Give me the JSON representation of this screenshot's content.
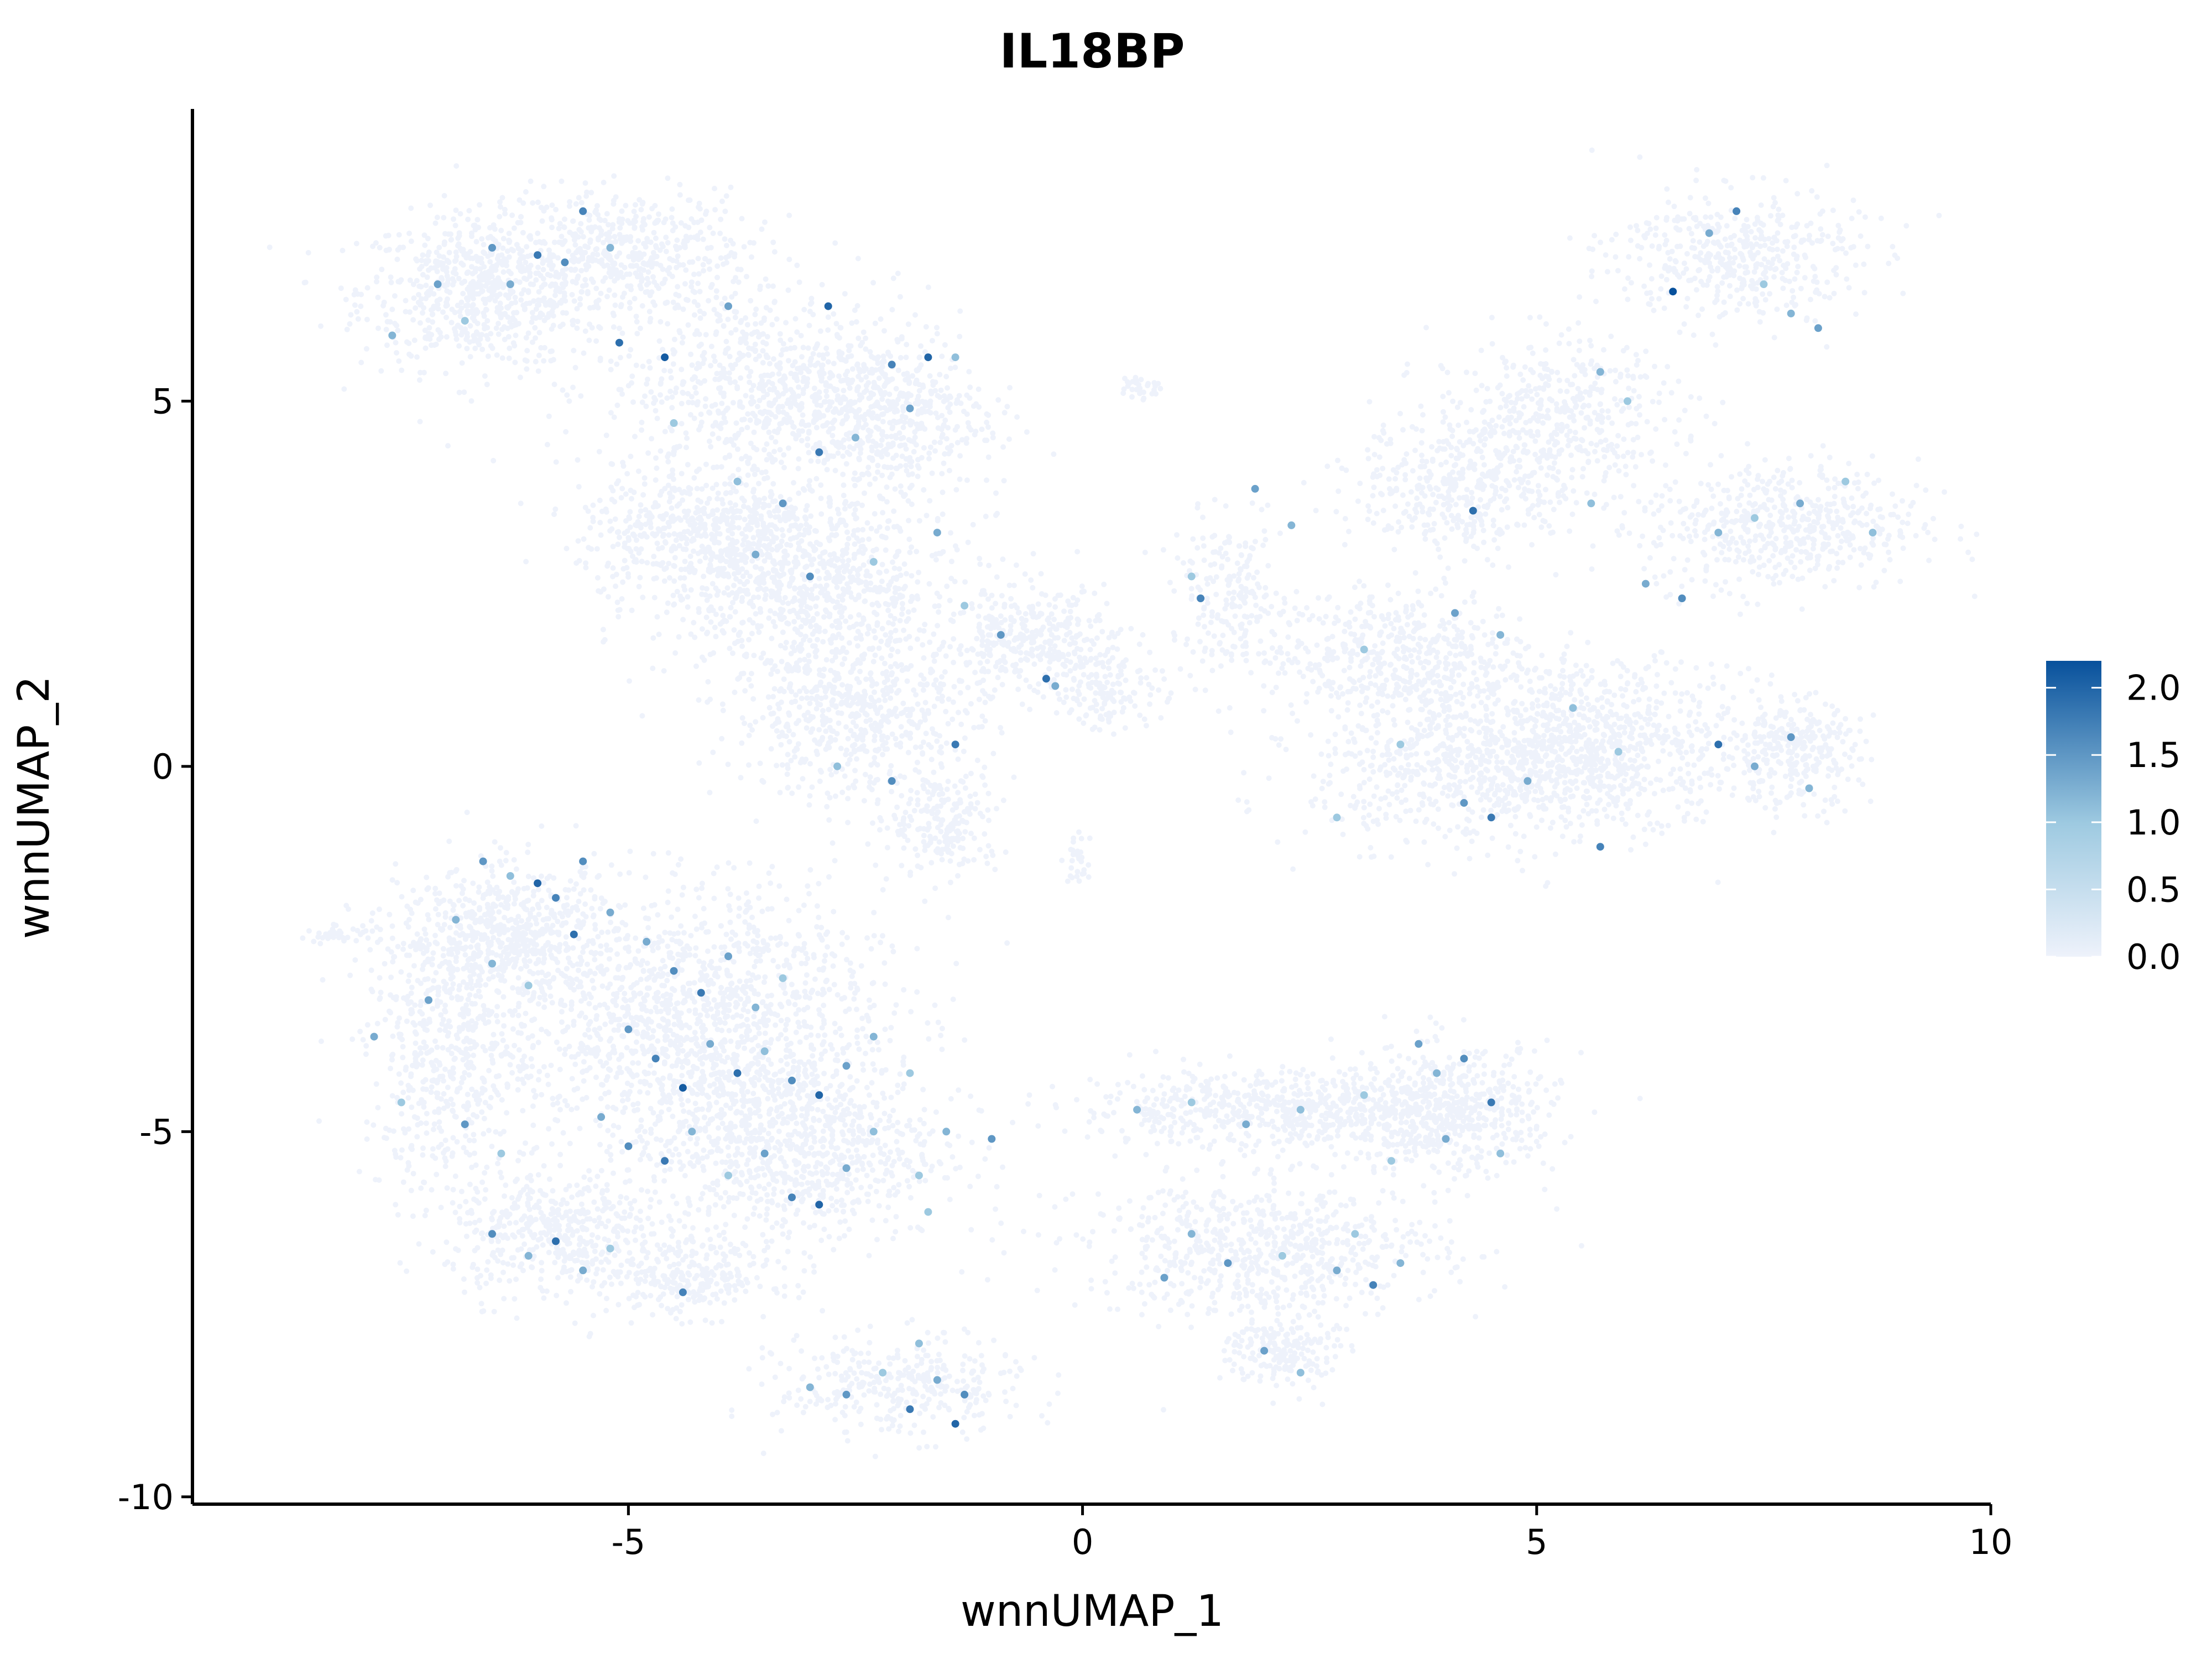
{
  "chart_data": {
    "type": "scatter",
    "title": "IL18BP",
    "xlabel": "wnnUMAP_1",
    "ylabel": "wnnUMAP_2",
    "xlim": [
      -9.8,
      10.0
    ],
    "ylim": [
      -10.1,
      9.0
    ],
    "xticks": [
      -5,
      0,
      5,
      10
    ],
    "xtick_labels": [
      "-5",
      "0",
      "5",
      "10"
    ],
    "yticks": [
      5,
      0,
      -5,
      -10
    ],
    "ytick_labels": [
      "5",
      "0",
      "-5",
      "-10"
    ],
    "grid": false,
    "color_scale": {
      "min": 0.0,
      "max": 2.2,
      "low_color": "#eef2fb",
      "mid_color": "#9ecae1",
      "high_color": "#08519c",
      "ticks": [
        2.0,
        1.5,
        1.0,
        0.5,
        0.0
      ],
      "tick_labels": [
        "2.0",
        "1.5",
        "1.0",
        "0.5",
        "0.0"
      ],
      "position": "right"
    },
    "background_cell_color": "#eef2fb",
    "clusters": [
      {
        "cx": -6.6,
        "cy": 6.5,
        "sx": 0.9,
        "sy": 0.7,
        "n": 700
      },
      {
        "cx": -5.0,
        "cy": 7.0,
        "sx": 0.9,
        "sy": 0.6,
        "n": 500
      },
      {
        "cx": -3.5,
        "cy": 5.2,
        "sx": 1.2,
        "sy": 0.9,
        "n": 700
      },
      {
        "cx": -2.3,
        "cy": 4.8,
        "sx": 0.8,
        "sy": 0.7,
        "n": 500
      },
      {
        "cx": -4.2,
        "cy": 3.2,
        "sx": 0.9,
        "sy": 0.6,
        "n": 500
      },
      {
        "cx": -3.0,
        "cy": 2.5,
        "sx": 1.1,
        "sy": 0.9,
        "n": 900
      },
      {
        "cx": -2.5,
        "cy": 0.7,
        "sx": 0.9,
        "sy": 0.8,
        "n": 600
      },
      {
        "cx": -1.5,
        "cy": -0.8,
        "sx": 0.4,
        "sy": 0.5,
        "n": 200
      },
      {
        "cx": -0.6,
        "cy": 1.7,
        "sx": 0.6,
        "sy": 0.5,
        "n": 350
      },
      {
        "cx": 0.3,
        "cy": 1.1,
        "sx": 0.4,
        "sy": 0.4,
        "n": 150
      },
      {
        "cx": 0.65,
        "cy": 5.2,
        "sx": 0.15,
        "sy": 0.12,
        "n": 30
      },
      {
        "cx": -0.05,
        "cy": -1.3,
        "sx": 0.12,
        "sy": 0.25,
        "n": 30
      },
      {
        "cx": 1.6,
        "cy": 2.3,
        "sx": 0.4,
        "sy": 0.7,
        "n": 200
      },
      {
        "cx": 7.2,
        "cy": 7.0,
        "sx": 0.9,
        "sy": 0.6,
        "n": 450
      },
      {
        "cx": 5.2,
        "cy": 4.8,
        "sx": 0.9,
        "sy": 0.7,
        "n": 450
      },
      {
        "cx": 4.2,
        "cy": 3.8,
        "sx": 0.8,
        "sy": 0.6,
        "n": 400
      },
      {
        "cx": 7.7,
        "cy": 3.3,
        "sx": 1.0,
        "sy": 0.6,
        "n": 550
      },
      {
        "cx": 3.5,
        "cy": 1.5,
        "sx": 1.0,
        "sy": 0.6,
        "n": 550
      },
      {
        "cx": 4.5,
        "cy": 0.0,
        "sx": 1.3,
        "sy": 0.7,
        "n": 900
      },
      {
        "cx": 5.9,
        "cy": 0.4,
        "sx": 0.9,
        "sy": 0.7,
        "n": 500
      },
      {
        "cx": 7.8,
        "cy": 0.2,
        "sx": 0.5,
        "sy": 0.5,
        "n": 300
      },
      {
        "cx": -6.3,
        "cy": -2.3,
        "sx": 0.8,
        "sy": 0.6,
        "n": 600
      },
      {
        "cx": -7.0,
        "cy": -4.0,
        "sx": 0.6,
        "sy": 1.2,
        "n": 500
      },
      {
        "cx": -4.3,
        "cy": -3.5,
        "sx": 1.4,
        "sy": 1.2,
        "n": 1500
      },
      {
        "cx": -3.2,
        "cy": -5.2,
        "sx": 1.1,
        "sy": 0.9,
        "n": 900
      },
      {
        "cx": -5.8,
        "cy": -6.4,
        "sx": 0.8,
        "sy": 0.6,
        "n": 500
      },
      {
        "cx": -4.3,
        "cy": -7.0,
        "sx": 0.6,
        "sy": 0.35,
        "n": 250
      },
      {
        "cx": -2.0,
        "cy": -8.5,
        "sx": 0.9,
        "sy": 0.45,
        "n": 350
      },
      {
        "cx": 2.3,
        "cy": -4.7,
        "sx": 1.6,
        "sy": 0.35,
        "n": 700
      },
      {
        "cx": 4.0,
        "cy": -4.7,
        "sx": 0.8,
        "sy": 0.6,
        "n": 500
      },
      {
        "cx": 2.0,
        "cy": -6.6,
        "sx": 1.3,
        "sy": 0.6,
        "n": 700
      },
      {
        "cx": 2.2,
        "cy": -8.0,
        "sx": 0.4,
        "sy": 0.35,
        "n": 200
      },
      {
        "cx": -8.2,
        "cy": -2.3,
        "sx": 0.3,
        "sy": 0.08,
        "n": 40
      }
    ],
    "expressing_cells": [
      {
        "x": -7.6,
        "y": 5.9,
        "v": 1.2
      },
      {
        "x": -7.1,
        "y": 6.6,
        "v": 1.4
      },
      {
        "x": -6.8,
        "y": 6.1,
        "v": 1.0
      },
      {
        "x": -6.5,
        "y": 7.1,
        "v": 1.5
      },
      {
        "x": -6.3,
        "y": 6.6,
        "v": 1.3
      },
      {
        "x": -6.0,
        "y": 7.0,
        "v": 1.8
      },
      {
        "x": -5.7,
        "y": 6.9,
        "v": 1.6
      },
      {
        "x": -5.5,
        "y": 7.6,
        "v": 1.7
      },
      {
        "x": -5.2,
        "y": 7.1,
        "v": 1.2
      },
      {
        "x": -5.1,
        "y": 5.8,
        "v": 1.9
      },
      {
        "x": -4.6,
        "y": 5.6,
        "v": 2.1
      },
      {
        "x": -4.5,
        "y": 4.7,
        "v": 1.0
      },
      {
        "x": -3.9,
        "y": 6.3,
        "v": 1.4
      },
      {
        "x": -3.8,
        "y": 3.9,
        "v": 1.1
      },
      {
        "x": -3.6,
        "y": 2.9,
        "v": 1.3
      },
      {
        "x": -3.3,
        "y": 3.6,
        "v": 1.5
      },
      {
        "x": -3.0,
        "y": 2.6,
        "v": 1.6
      },
      {
        "x": -2.9,
        "y": 4.3,
        "v": 1.8
      },
      {
        "x": -2.8,
        "y": 6.3,
        "v": 2.0
      },
      {
        "x": -2.5,
        "y": 4.5,
        "v": 1.2
      },
      {
        "x": -2.3,
        "y": 2.8,
        "v": 1.0
      },
      {
        "x": -2.1,
        "y": 5.5,
        "v": 1.7
      },
      {
        "x": -1.9,
        "y": 4.9,
        "v": 1.4
      },
      {
        "x": -1.7,
        "y": 5.6,
        "v": 2.0
      },
      {
        "x": -1.6,
        "y": 3.2,
        "v": 1.3
      },
      {
        "x": -1.4,
        "y": 5.6,
        "v": 1.1
      },
      {
        "x": -1.3,
        "y": 2.2,
        "v": 1.0
      },
      {
        "x": -2.1,
        "y": -0.2,
        "v": 1.6
      },
      {
        "x": -1.4,
        "y": 0.3,
        "v": 1.8
      },
      {
        "x": -0.9,
        "y": 1.8,
        "v": 1.5
      },
      {
        "x": -0.4,
        "y": 1.2,
        "v": 1.9
      },
      {
        "x": -0.3,
        "y": 1.1,
        "v": 1.3
      },
      {
        "x": -2.7,
        "y": 0.0,
        "v": 1.1
      },
      {
        "x": 1.3,
        "y": 2.3,
        "v": 1.7
      },
      {
        "x": 1.9,
        "y": 3.8,
        "v": 1.4
      },
      {
        "x": 1.2,
        "y": 2.6,
        "v": 1.0
      },
      {
        "x": 2.3,
        "y": 3.3,
        "v": 1.2
      },
      {
        "x": 3.1,
        "y": 1.6,
        "v": 1.0
      },
      {
        "x": 2.8,
        "y": -0.7,
        "v": 1.0
      },
      {
        "x": 6.5,
        "y": 6.5,
        "v": 2.2
      },
      {
        "x": 6.9,
        "y": 7.3,
        "v": 1.3
      },
      {
        "x": 7.2,
        "y": 7.6,
        "v": 1.7
      },
      {
        "x": 7.5,
        "y": 6.6,
        "v": 1.0
      },
      {
        "x": 7.8,
        "y": 6.2,
        "v": 1.2
      },
      {
        "x": 8.1,
        "y": 6.0,
        "v": 1.4
      },
      {
        "x": 5.7,
        "y": 5.4,
        "v": 1.2
      },
      {
        "x": 6.0,
        "y": 5.0,
        "v": 1.0
      },
      {
        "x": 4.3,
        "y": 3.5,
        "v": 1.9
      },
      {
        "x": 5.6,
        "y": 3.6,
        "v": 1.1
      },
      {
        "x": 6.2,
        "y": 2.5,
        "v": 1.3
      },
      {
        "x": 6.6,
        "y": 2.3,
        "v": 1.6
      },
      {
        "x": 7.0,
        "y": 3.2,
        "v": 1.2
      },
      {
        "x": 7.4,
        "y": 3.4,
        "v": 1.0
      },
      {
        "x": 7.9,
        "y": 3.6,
        "v": 1.3
      },
      {
        "x": 8.4,
        "y": 3.9,
        "v": 1.0
      },
      {
        "x": 8.7,
        "y": 3.2,
        "v": 1.1
      },
      {
        "x": 4.1,
        "y": 2.1,
        "v": 1.4
      },
      {
        "x": 4.6,
        "y": 1.8,
        "v": 1.2
      },
      {
        "x": 3.5,
        "y": 0.3,
        "v": 1.0
      },
      {
        "x": 4.2,
        "y": -0.5,
        "v": 1.5
      },
      {
        "x": 4.5,
        "y": -0.7,
        "v": 1.8
      },
      {
        "x": 4.9,
        "y": -0.2,
        "v": 1.3
      },
      {
        "x": 5.4,
        "y": 0.8,
        "v": 1.1
      },
      {
        "x": 5.7,
        "y": -1.1,
        "v": 1.7
      },
      {
        "x": 5.9,
        "y": 0.2,
        "v": 1.0
      },
      {
        "x": 7.0,
        "y": 0.3,
        "v": 1.9
      },
      {
        "x": 7.4,
        "y": 0.0,
        "v": 1.3
      },
      {
        "x": 7.8,
        "y": 0.4,
        "v": 1.5
      },
      {
        "x": 8.0,
        "y": -0.3,
        "v": 1.2
      },
      {
        "x": -7.8,
        "y": -3.7,
        "v": 1.3
      },
      {
        "x": -7.5,
        "y": -4.6,
        "v": 1.0
      },
      {
        "x": -7.2,
        "y": -3.2,
        "v": 1.4
      },
      {
        "x": -6.9,
        "y": -2.1,
        "v": 1.2
      },
      {
        "x": -6.6,
        "y": -1.3,
        "v": 1.5
      },
      {
        "x": -6.3,
        "y": -1.5,
        "v": 1.1
      },
      {
        "x": -6.0,
        "y": -1.6,
        "v": 2.0
      },
      {
        "x": -5.8,
        "y": -1.8,
        "v": 1.7
      },
      {
        "x": -5.5,
        "y": -1.3,
        "v": 1.6
      },
      {
        "x": -5.6,
        "y": -2.3,
        "v": 1.9
      },
      {
        "x": -5.2,
        "y": -2.0,
        "v": 1.3
      },
      {
        "x": -6.5,
        "y": -2.7,
        "v": 1.2
      },
      {
        "x": -6.1,
        "y": -3.0,
        "v": 1.0
      },
      {
        "x": -4.8,
        "y": -2.4,
        "v": 1.3
      },
      {
        "x": -4.5,
        "y": -2.8,
        "v": 1.6
      },
      {
        "x": -4.2,
        "y": -3.1,
        "v": 1.8
      },
      {
        "x": -3.9,
        "y": -2.6,
        "v": 1.4
      },
      {
        "x": -3.6,
        "y": -3.3,
        "v": 1.2
      },
      {
        "x": -3.3,
        "y": -2.9,
        "v": 1.0
      },
      {
        "x": -5.0,
        "y": -3.6,
        "v": 1.5
      },
      {
        "x": -4.7,
        "y": -4.0,
        "v": 1.7
      },
      {
        "x": -4.4,
        "y": -4.4,
        "v": 2.1
      },
      {
        "x": -4.1,
        "y": -3.8,
        "v": 1.3
      },
      {
        "x": -3.8,
        "y": -4.2,
        "v": 1.9
      },
      {
        "x": -3.5,
        "y": -3.9,
        "v": 1.1
      },
      {
        "x": -3.2,
        "y": -4.3,
        "v": 1.6
      },
      {
        "x": -2.9,
        "y": -4.5,
        "v": 2.0
      },
      {
        "x": -2.6,
        "y": -4.1,
        "v": 1.4
      },
      {
        "x": -2.3,
        "y": -3.7,
        "v": 1.2
      },
      {
        "x": -1.9,
        "y": -4.2,
        "v": 1.0
      },
      {
        "x": -5.3,
        "y": -4.8,
        "v": 1.3
      },
      {
        "x": -5.0,
        "y": -5.2,
        "v": 1.6
      },
      {
        "x": -4.6,
        "y": -5.4,
        "v": 1.8
      },
      {
        "x": -4.3,
        "y": -5.0,
        "v": 1.2
      },
      {
        "x": -3.9,
        "y": -5.6,
        "v": 1.0
      },
      {
        "x": -3.5,
        "y": -5.3,
        "v": 1.4
      },
      {
        "x": -3.2,
        "y": -5.9,
        "v": 1.7
      },
      {
        "x": -2.9,
        "y": -6.0,
        "v": 2.0
      },
      {
        "x": -2.6,
        "y": -5.5,
        "v": 1.3
      },
      {
        "x": -2.3,
        "y": -5.0,
        "v": 1.1
      },
      {
        "x": -1.8,
        "y": -5.6,
        "v": 1.0
      },
      {
        "x": -1.5,
        "y": -5.0,
        "v": 1.2
      },
      {
        "x": -6.8,
        "y": -4.9,
        "v": 1.5
      },
      {
        "x": -6.4,
        "y": -5.3,
        "v": 1.0
      },
      {
        "x": -6.5,
        "y": -6.4,
        "v": 1.6
      },
      {
        "x": -6.1,
        "y": -6.7,
        "v": 1.2
      },
      {
        "x": -5.8,
        "y": -6.5,
        "v": 1.9
      },
      {
        "x": -5.5,
        "y": -6.9,
        "v": 1.3
      },
      {
        "x": -5.2,
        "y": -6.6,
        "v": 1.0
      },
      {
        "x": -4.4,
        "y": -7.2,
        "v": 1.7
      },
      {
        "x": -3.0,
        "y": -8.5,
        "v": 1.2
      },
      {
        "x": -2.6,
        "y": -8.6,
        "v": 1.5
      },
      {
        "x": -2.2,
        "y": -8.3,
        "v": 1.0
      },
      {
        "x": -1.9,
        "y": -8.8,
        "v": 1.8
      },
      {
        "x": -1.6,
        "y": -8.4,
        "v": 1.3
      },
      {
        "x": -1.4,
        "y": -9.0,
        "v": 2.0
      },
      {
        "x": -1.3,
        "y": -8.6,
        "v": 1.6
      },
      {
        "x": -1.8,
        "y": -7.9,
        "v": 1.1
      },
      {
        "x": 0.6,
        "y": -4.7,
        "v": 1.2
      },
      {
        "x": 1.2,
        "y": -4.6,
        "v": 1.0
      },
      {
        "x": 1.8,
        "y": -4.9,
        "v": 1.3
      },
      {
        "x": 2.4,
        "y": -4.7,
        "v": 1.1
      },
      {
        "x": 3.1,
        "y": -4.5,
        "v": 1.0
      },
      {
        "x": 3.7,
        "y": -3.8,
        "v": 1.4
      },
      {
        "x": 3.9,
        "y": -4.2,
        "v": 1.2
      },
      {
        "x": 4.2,
        "y": -4.0,
        "v": 1.6
      },
      {
        "x": 4.5,
        "y": -4.6,
        "v": 1.8
      },
      {
        "x": 4.0,
        "y": -5.1,
        "v": 1.3
      },
      {
        "x": 4.6,
        "y": -5.3,
        "v": 1.1
      },
      {
        "x": 3.4,
        "y": -5.4,
        "v": 1.0
      },
      {
        "x": 1.2,
        "y": -6.4,
        "v": 1.2
      },
      {
        "x": 1.6,
        "y": -6.8,
        "v": 1.5
      },
      {
        "x": 2.2,
        "y": -6.7,
        "v": 1.0
      },
      {
        "x": 2.8,
        "y": -6.9,
        "v": 1.3
      },
      {
        "x": 3.2,
        "y": -7.1,
        "v": 1.7
      },
      {
        "x": 3.5,
        "y": -6.8,
        "v": 1.2
      },
      {
        "x": 3.0,
        "y": -6.4,
        "v": 1.0
      },
      {
        "x": 2.0,
        "y": -8.0,
        "v": 1.4
      },
      {
        "x": 2.4,
        "y": -8.3,
        "v": 1.1
      },
      {
        "x": -1.0,
        "y": -5.1,
        "v": 1.5
      },
      {
        "x": -1.7,
        "y": -6.1,
        "v": 1.0
      },
      {
        "x": 0.9,
        "y": -7.0,
        "v": 1.4
      }
    ]
  }
}
